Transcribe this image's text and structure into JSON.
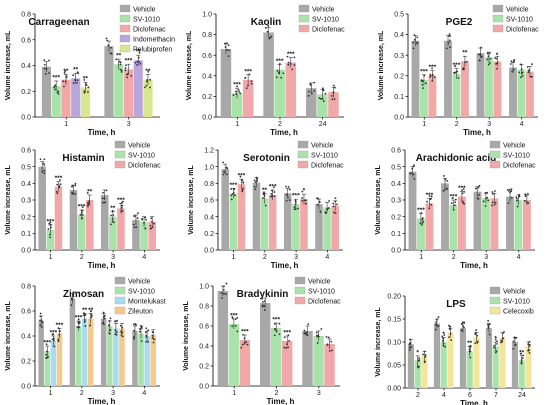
{
  "figure": {
    "colors": {
      "Vehicle": "#a8a8a8",
      "SV-1010": "#a9e3a9",
      "Diclofenac": "#f2a8a8",
      "Indomethacin": "#b9a6dc",
      "Pelubiprofen": "#d8e88e",
      "Montelukast": "#a9dcef",
      "Zileuton": "#f5c98c",
      "Celecoxib": "#f4e59a"
    },
    "grid": false
  },
  "chart_data": [
    {
      "type": "bar",
      "title": "Carrageenan",
      "xlabel": "Time, h",
      "ylabel": "Volume increase, mL",
      "categories": [
        "1",
        "3"
      ],
      "ylim": [
        0,
        0.8
      ],
      "yticks": [
        "0.0",
        "0.2",
        "0.4",
        "0.6",
        "0.8"
      ],
      "series": [
        {
          "name": "Vehicle",
          "values": [
            0.39,
            0.55
          ],
          "sig": [
            "",
            ""
          ]
        },
        {
          "name": "SV-1010",
          "values": [
            0.24,
            0.41
          ],
          "sig": [
            "***",
            "**"
          ]
        },
        {
          "name": "Diclofenac",
          "values": [
            0.29,
            0.37
          ],
          "sig": [
            "**",
            "***"
          ]
        },
        {
          "name": "Indomethacin",
          "values": [
            0.3,
            0.44
          ],
          "sig": [
            "**",
            "**"
          ]
        },
        {
          "name": "Pelubiprofen",
          "values": [
            0.23,
            0.29
          ],
          "sig": [
            "**",
            "**"
          ]
        }
      ]
    },
    {
      "type": "bar",
      "title": "Kaolin",
      "xlabel": "Time, h",
      "ylabel": "Volume increase, mL",
      "categories": [
        "1",
        "2",
        "24"
      ],
      "ylim": [
        0,
        1.0
      ],
      "yticks": [
        "0.0",
        "0.2",
        "0.4",
        "0.6",
        "0.8",
        "1.0"
      ],
      "series": [
        {
          "name": "Vehicle",
          "values": [
            0.66,
            0.82,
            0.28
          ],
          "sig": [
            "",
            "",
            ""
          ]
        },
        {
          "name": "SV-1010",
          "values": [
            0.23,
            0.46,
            0.22
          ],
          "sig": [
            "***",
            "***",
            ""
          ]
        },
        {
          "name": "Diclofenac",
          "values": [
            0.36,
            0.53,
            0.24
          ],
          "sig": [
            "***",
            "***",
            ""
          ]
        }
      ]
    },
    {
      "type": "bar",
      "title": "PGE2",
      "xlabel": "Time, h",
      "ylabel": "Volume increase, mL",
      "categories": [
        "1",
        "2",
        "3",
        "4"
      ],
      "ylim": [
        0,
        0.5
      ],
      "yticks": [
        "0.0",
        "0.1",
        "0.2",
        "0.3",
        "0.4",
        "0.5"
      ],
      "series": [
        {
          "name": "Vehicle",
          "values": [
            0.37,
            0.37,
            0.31,
            0.24
          ],
          "sig": [
            "",
            "",
            "",
            ""
          ]
        },
        {
          "name": "SV-1010",
          "values": [
            0.18,
            0.21,
            0.29,
            0.23
          ],
          "sig": [
            "***",
            "***",
            "",
            ""
          ]
        },
        {
          "name": "Diclofenac",
          "values": [
            0.2,
            0.27,
            0.27,
            0.22
          ],
          "sig": [
            "***",
            "**",
            "",
            ""
          ]
        }
      ]
    },
    {
      "type": "bar",
      "title": "Histamin",
      "xlabel": "Time, h",
      "ylabel": "Volume increase, mL",
      "categories": [
        "1",
        "2",
        "3",
        "4"
      ],
      "ylim": [
        0,
        0.6
      ],
      "yticks": [
        "0.0",
        "0.1",
        "0.2",
        "0.3",
        "0.4",
        "0.5",
        "0.6"
      ],
      "series": [
        {
          "name": "Vehicle",
          "values": [
            0.5,
            0.36,
            0.33,
            0.18
          ],
          "sig": [
            "",
            "",
            "",
            ""
          ]
        },
        {
          "name": "SV-1010",
          "values": [
            0.12,
            0.21,
            0.2,
            0.17
          ],
          "sig": [
            "***",
            "***",
            "**",
            ""
          ]
        },
        {
          "name": "Diclofenac",
          "values": [
            0.38,
            0.3,
            0.25,
            0.17
          ],
          "sig": [
            "***",
            "**",
            "***",
            ""
          ]
        }
      ]
    },
    {
      "type": "bar",
      "title": "Serotonin",
      "xlabel": "Time, h",
      "ylabel": "Volume increase, mL",
      "categories": [
        "1",
        "2",
        "3",
        "4"
      ],
      "ylim": [
        0,
        1.2
      ],
      "yticks": [
        "0.0",
        "0.2",
        "0.4",
        "0.6",
        "0.8",
        "1.0",
        "1.2"
      ],
      "series": [
        {
          "name": "Vehicle",
          "values": [
            0.97,
            0.81,
            0.68,
            0.55
          ],
          "sig": [
            "",
            "",
            "",
            ""
          ]
        },
        {
          "name": "SV-1010",
          "values": [
            0.68,
            0.62,
            0.55,
            0.51
          ],
          "sig": [
            "***",
            "**",
            "***",
            ""
          ]
        },
        {
          "name": "Diclofenac",
          "values": [
            0.79,
            0.66,
            0.61,
            0.53
          ],
          "sig": [
            "***",
            "***",
            "*",
            ""
          ]
        }
      ]
    },
    {
      "type": "bar",
      "title": "Arachidonic acid",
      "xlabel": "Time, h",
      "ylabel": "Volume increase, mL",
      "categories": [
        "1",
        "2",
        "3",
        "4"
      ],
      "ylim": [
        0,
        0.6
      ],
      "yticks": [
        "0.0",
        "0.1",
        "0.2",
        "0.3",
        "0.4",
        "0.5",
        "0.6"
      ],
      "series": [
        {
          "name": "Vehicle",
          "values": [
            0.47,
            0.4,
            0.35,
            0.32
          ],
          "sig": [
            "",
            "",
            "",
            ""
          ]
        },
        {
          "name": "SV-1010",
          "values": [
            0.19,
            0.27,
            0.31,
            0.3
          ],
          "sig": [
            "***",
            "***",
            "",
            ""
          ]
        },
        {
          "name": "Diclofenac",
          "values": [
            0.28,
            0.32,
            0.31,
            0.3
          ],
          "sig": [
            "***",
            "***",
            "",
            ""
          ]
        }
      ]
    },
    {
      "type": "bar",
      "title": "Zimosan",
      "xlabel": "Time, h",
      "ylabel": "Volume increase, mL",
      "categories": [
        "1",
        "2",
        "3",
        "4"
      ],
      "ylim": [
        0,
        0.8
      ],
      "yticks": [
        "0.0",
        "0.2",
        "0.4",
        "0.6",
        "0.8"
      ],
      "series": [
        {
          "name": "Vehicle",
          "values": [
            0.52,
            0.7,
            0.54,
            0.44
          ],
          "sig": [
            "",
            "",
            "",
            ""
          ]
        },
        {
          "name": "SV-1010",
          "values": [
            0.28,
            0.48,
            0.48,
            0.42
          ],
          "sig": [
            "***",
            "***",
            "",
            ""
          ]
        },
        {
          "name": "Montelukast",
          "values": [
            0.36,
            0.54,
            0.46,
            0.4
          ],
          "sig": [
            "***",
            "**",
            "",
            ""
          ]
        },
        {
          "name": "Zileuton",
          "values": [
            0.42,
            0.54,
            0.46,
            0.41
          ],
          "sig": [
            "***",
            "**",
            "",
            ""
          ]
        }
      ]
    },
    {
      "type": "bar",
      "title": "Bradykinin",
      "xlabel": "Time, h",
      "ylabel": "Volume increase, mL",
      "categories": [
        "1",
        "2",
        "3"
      ],
      "ylim": [
        0,
        1.0
      ],
      "yticks": [
        "0.0",
        "0.2",
        "0.4",
        "0.6",
        "0.8",
        "1.0"
      ],
      "series": [
        {
          "name": "Vehicle",
          "values": [
            0.95,
            0.83,
            0.55
          ],
          "sig": [
            "",
            "",
            ""
          ]
        },
        {
          "name": "SV-1010",
          "values": [
            0.62,
            0.58,
            0.5
          ],
          "sig": [
            "***",
            "***",
            ""
          ]
        },
        {
          "name": "Diclofenac",
          "values": [
            0.46,
            0.45,
            0.42
          ],
          "sig": [
            "***",
            "***",
            ""
          ]
        }
      ]
    },
    {
      "type": "bar",
      "title": "LPS",
      "xlabel": "Time, h",
      "ylabel": "Volume increase, mL",
      "categories": [
        "2",
        "4",
        "6",
        "7",
        "24"
      ],
      "ylim": [
        0,
        0.2
      ],
      "yticks": [
        "0.00",
        "0.05",
        "0.10",
        "0.15",
        "0.20"
      ],
      "series": [
        {
          "name": "Vehicle",
          "values": [
            0.095,
            0.14,
            0.13,
            0.13,
            0.1
          ],
          "sig": [
            "",
            "",
            "",
            "",
            ""
          ]
        },
        {
          "name": "SV-1010",
          "values": [
            0.06,
            0.1,
            0.08,
            0.09,
            0.06
          ],
          "sig": [
            "*",
            "*",
            "**",
            "*",
            "**"
          ]
        },
        {
          "name": "Celecoxib",
          "values": [
            0.07,
            0.12,
            0.11,
            0.11,
            0.09
          ],
          "sig": [
            "",
            "",
            "",
            "",
            ""
          ]
        }
      ]
    }
  ]
}
